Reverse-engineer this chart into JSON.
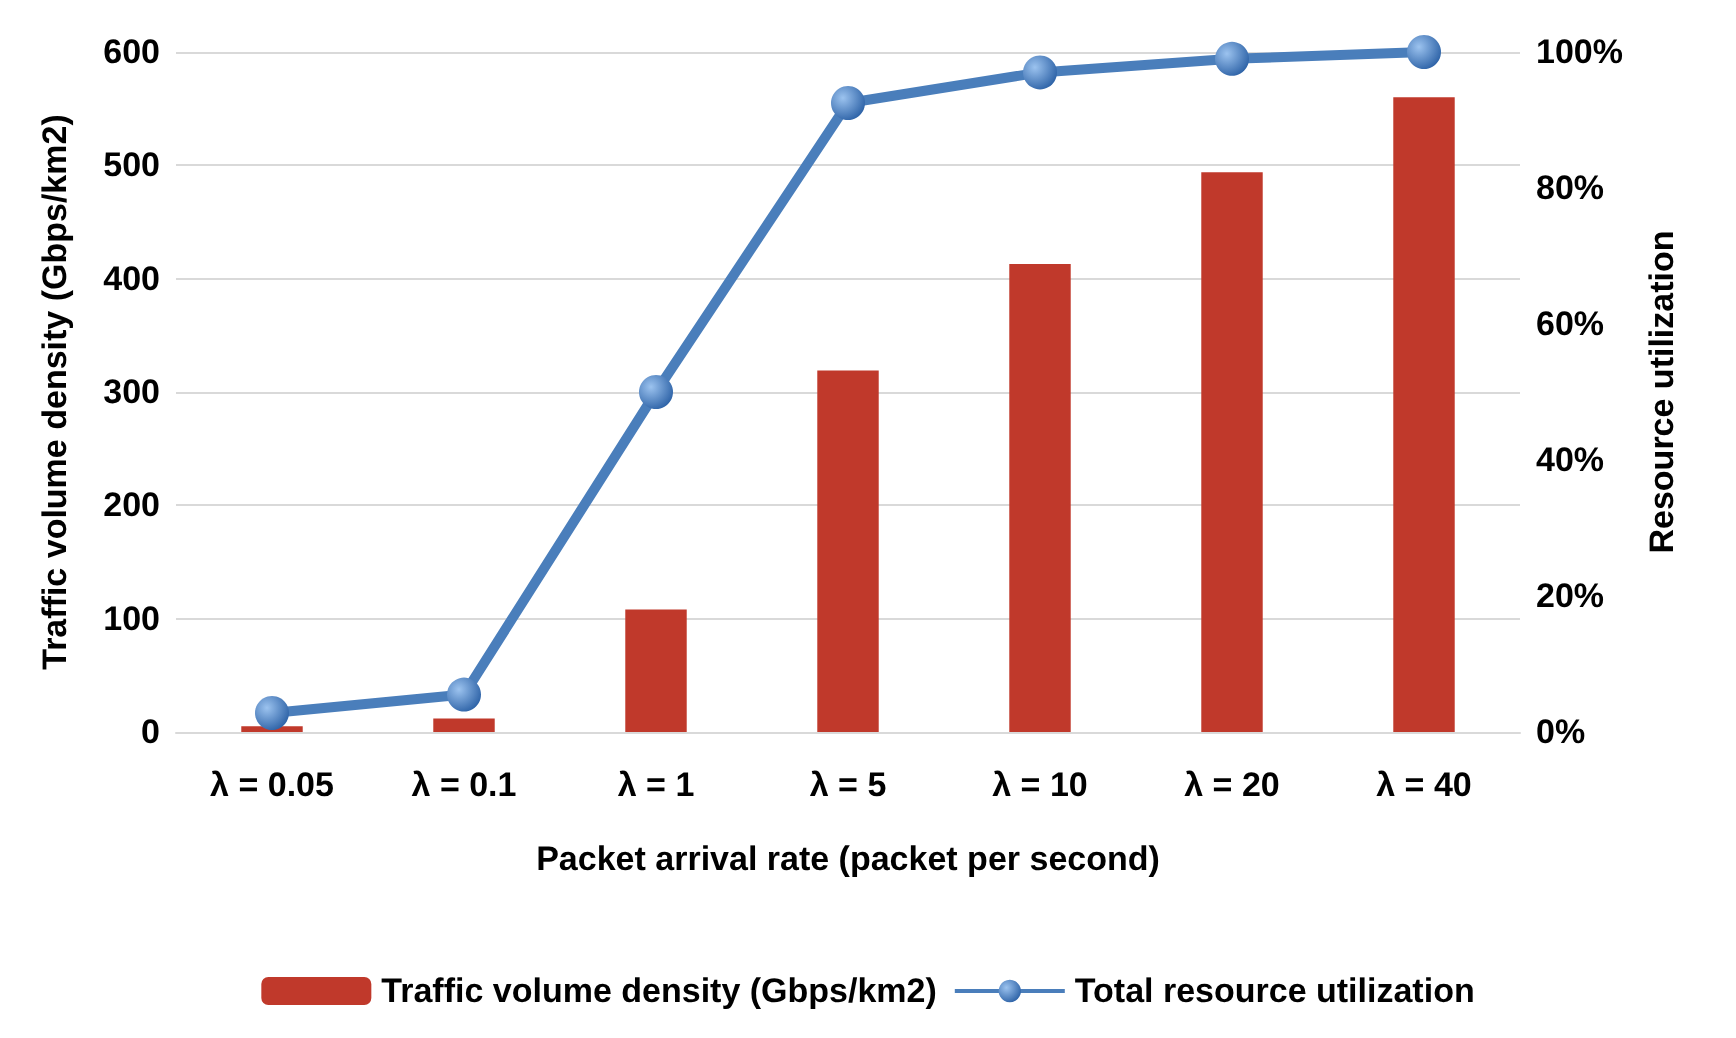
{
  "chart_data": {
    "type": "bar",
    "xlabel": "Packet arrival rate (packet per second)",
    "ylabel": "Traffic volume density (Gbps/km2)",
    "y2label": "Resource utilization",
    "categories": [
      "λ = 0.05",
      "λ = 0.1",
      "λ = 1",
      "λ = 5",
      "λ = 10",
      "λ = 20",
      "λ = 40"
    ],
    "series": [
      {
        "name": "Traffic volume density (Gbps/km2)",
        "color": "#c0392b",
        "values": [
          5,
          12,
          108,
          319,
          413,
          494,
          560
        ]
      },
      {
        "name": "Total resource utilization",
        "type": "line",
        "axis": "y2",
        "color": "#4a7ebb",
        "marker": "circle",
        "values": [
          2.8,
          5.5,
          50,
          92.5,
          97,
          99,
          100
        ]
      }
    ],
    "ylim": [
      0,
      600
    ],
    "yticks": [
      0,
      100,
      200,
      300,
      400,
      500,
      600
    ],
    "y2lim": [
      0,
      100
    ],
    "y2ticks": [
      {
        "value": 0,
        "label": "0%"
      },
      {
        "value": 20,
        "label": "20%"
      },
      {
        "value": 40,
        "label": "40%"
      },
      {
        "value": 60,
        "label": "60%"
      },
      {
        "value": 80,
        "label": "80%"
      },
      {
        "value": 100,
        "label": "100%"
      }
    ],
    "grid": "y",
    "legend": "bottom"
  }
}
